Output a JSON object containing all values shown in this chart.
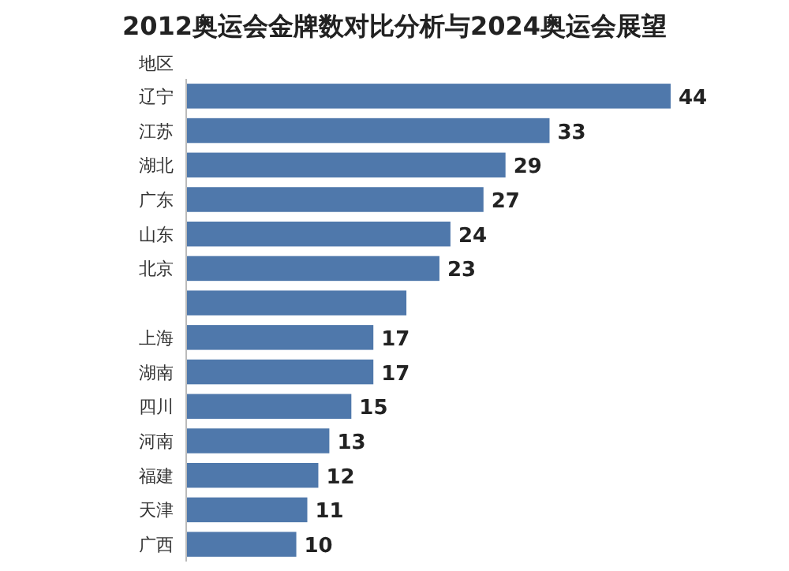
{
  "chart_data": {
    "type": "bar",
    "orientation": "horizontal",
    "title": "2012奥运会金牌数对比分析与2024奥运会展望",
    "ylabel": "地区",
    "categories": [
      "辽宁",
      "江苏",
      "湖北",
      "广东",
      "山东",
      "北京",
      null,
      "上海",
      "湖南",
      "四川",
      "河南",
      "福建",
      "天津",
      "广西"
    ],
    "values": [
      44,
      33,
      29,
      27,
      24,
      23,
      20,
      17,
      17,
      15,
      13,
      12,
      11,
      10
    ],
    "value_labels": [
      "44",
      "33",
      "29",
      "27",
      "24",
      "23",
      null,
      "17",
      "17",
      "15",
      "13",
      "12",
      "11",
      "10"
    ],
    "color": "#4f78ab"
  }
}
